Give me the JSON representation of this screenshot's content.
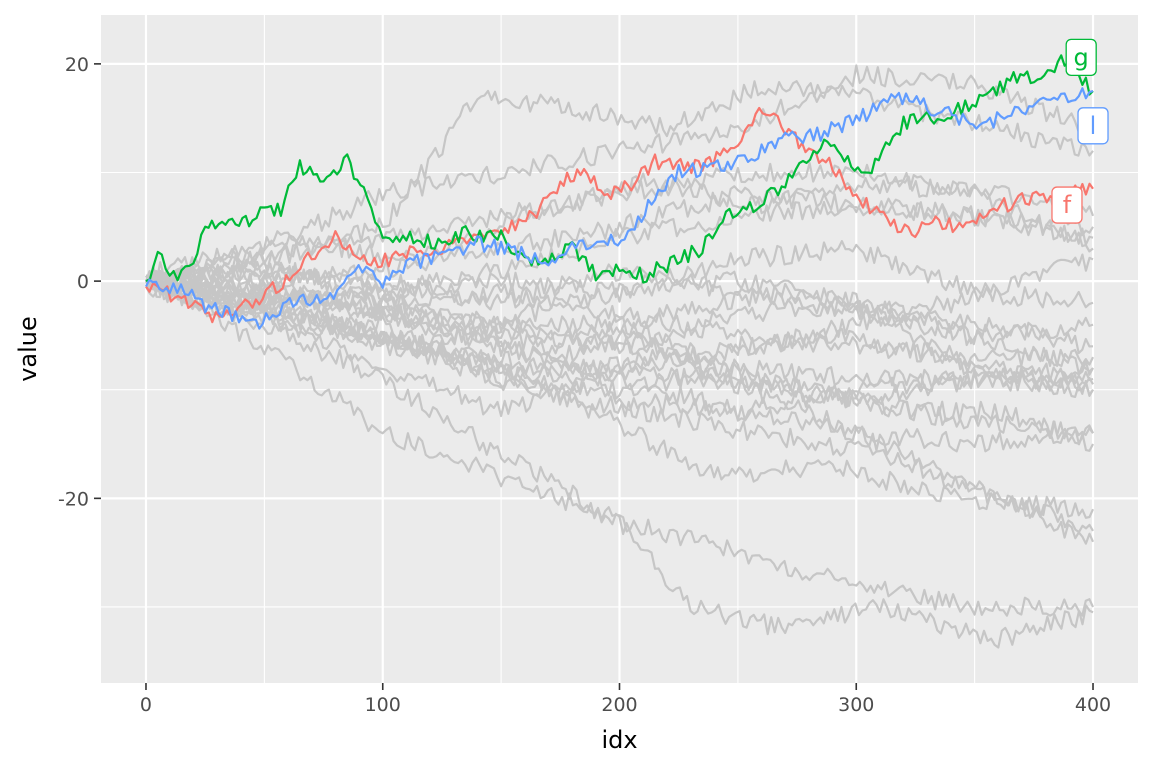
{
  "chart_data": {
    "type": "line",
    "title": "",
    "xlabel": "idx",
    "ylabel": "value",
    "xlim": [
      -19,
      419
    ],
    "ylim": [
      -37,
      24.5
    ],
    "x_ticks": [
      0,
      100,
      200,
      300,
      400
    ],
    "x_tick_labels": [
      "0",
      "100",
      "200",
      "300",
      "400"
    ],
    "y_ticks": [
      20,
      0,
      -20
    ],
    "y_tick_labels": [
      "20",
      "0",
      "-20"
    ],
    "grid": true,
    "legend": "none",
    "n_points": 400,
    "background_color": "#ebebeb",
    "background_series_color": "#c6c6c6",
    "highlighted_series": [
      {
        "name": "f",
        "color": "#f8766d",
        "keypoints": [
          [
            0,
            -0.5
          ],
          [
            15,
            -1.5
          ],
          [
            28,
            -3.5
          ],
          [
            45,
            -2
          ],
          [
            55,
            -0.5
          ],
          [
            62,
            0.5
          ],
          [
            70,
            2.5
          ],
          [
            80,
            4
          ],
          [
            95,
            1.5
          ],
          [
            110,
            2.5
          ],
          [
            125,
            3
          ],
          [
            140,
            4
          ],
          [
            150,
            4.5
          ],
          [
            165,
            6.5
          ],
          [
            175,
            9
          ],
          [
            185,
            10
          ],
          [
            195,
            8
          ],
          [
            205,
            9
          ],
          [
            215,
            11
          ],
          [
            235,
            10.5
          ],
          [
            250,
            13
          ],
          [
            262,
            16
          ],
          [
            270,
            14
          ],
          [
            280,
            12
          ],
          [
            290,
            10.5
          ],
          [
            300,
            8
          ],
          [
            310,
            6
          ],
          [
            322,
            4.5
          ],
          [
            335,
            5.5
          ],
          [
            345,
            5
          ],
          [
            355,
            6.5
          ],
          [
            370,
            7.5
          ],
          [
            385,
            8
          ],
          [
            400,
            8.5
          ]
        ]
      },
      {
        "name": "g",
        "color": "#00ba38",
        "keypoints": [
          [
            0,
            0
          ],
          [
            5,
            2.5
          ],
          [
            10,
            1
          ],
          [
            15,
            0.5
          ],
          [
            20,
            2
          ],
          [
            25,
            5
          ],
          [
            35,
            6
          ],
          [
            45,
            5.5
          ],
          [
            50,
            7
          ],
          [
            57,
            6.5
          ],
          [
            65,
            10.5
          ],
          [
            75,
            9.5
          ],
          [
            85,
            11
          ],
          [
            92,
            8
          ],
          [
            100,
            4.5
          ],
          [
            110,
            4
          ],
          [
            125,
            3.5
          ],
          [
            135,
            4.5
          ],
          [
            150,
            4
          ],
          [
            160,
            2
          ],
          [
            170,
            2
          ],
          [
            180,
            3
          ],
          [
            190,
            0.5
          ],
          [
            200,
            1
          ],
          [
            210,
            0.5
          ],
          [
            220,
            1.5
          ],
          [
            235,
            3
          ],
          [
            245,
            6
          ],
          [
            258,
            7
          ],
          [
            270,
            9
          ],
          [
            285,
            12.5
          ],
          [
            295,
            11.5
          ],
          [
            305,
            10
          ],
          [
            320,
            14.5
          ],
          [
            330,
            15
          ],
          [
            340,
            15.5
          ],
          [
            355,
            17
          ],
          [
            365,
            18.5
          ],
          [
            378,
            19
          ],
          [
            388,
            20.5
          ],
          [
            400,
            17.5
          ]
        ]
      },
      {
        "name": "l",
        "color": "#619cff",
        "keypoints": [
          [
            0,
            -0.5
          ],
          [
            10,
            -0.5
          ],
          [
            18,
            -1
          ],
          [
            25,
            -2.5
          ],
          [
            35,
            -3
          ],
          [
            45,
            -4
          ],
          [
            55,
            -3
          ],
          [
            65,
            -1.5
          ],
          [
            75,
            -2
          ],
          [
            85,
            0
          ],
          [
            93,
            1.5
          ],
          [
            100,
            -0.5
          ],
          [
            110,
            1.5
          ],
          [
            125,
            2.5
          ],
          [
            140,
            3.5
          ],
          [
            150,
            3
          ],
          [
            160,
            2.5
          ],
          [
            170,
            2
          ],
          [
            180,
            3
          ],
          [
            195,
            3.5
          ],
          [
            205,
            4.5
          ],
          [
            215,
            8
          ],
          [
            225,
            10
          ],
          [
            240,
            10.5
          ],
          [
            250,
            11
          ],
          [
            260,
            12
          ],
          [
            270,
            13
          ],
          [
            285,
            13.5
          ],
          [
            300,
            15
          ],
          [
            310,
            16
          ],
          [
            318,
            17
          ],
          [
            330,
            16
          ],
          [
            345,
            15
          ],
          [
            355,
            14.5
          ],
          [
            370,
            16
          ],
          [
            385,
            16.5
          ],
          [
            400,
            17.5
          ]
        ]
      }
    ],
    "background_series": [
      [
        [
          0,
          0
        ],
        [
          50,
          2
        ],
        [
          100,
          5
        ],
        [
          140,
          17
        ],
        [
          180,
          16
        ],
        [
          220,
          14
        ],
        [
          260,
          18
        ],
        [
          300,
          17
        ],
        [
          340,
          15
        ],
        [
          380,
          13
        ],
        [
          400,
          12
        ]
      ],
      [
        [
          0,
          -0.5
        ],
        [
          60,
          -4
        ],
        [
          100,
          -8
        ],
        [
          150,
          -12
        ],
        [
          200,
          -8
        ],
        [
          250,
          -6
        ],
        [
          300,
          -5
        ],
        [
          350,
          -8
        ],
        [
          400,
          -10
        ]
      ],
      [
        [
          0,
          0
        ],
        [
          50,
          -4
        ],
        [
          100,
          -9
        ],
        [
          150,
          -16
        ],
        [
          200,
          -22
        ],
        [
          250,
          -25
        ],
        [
          300,
          -28
        ],
        [
          350,
          -30
        ],
        [
          400,
          -30
        ]
      ],
      [
        [
          0,
          0
        ],
        [
          50,
          -6
        ],
        [
          100,
          -14
        ],
        [
          150,
          -18
        ],
        [
          200,
          -22
        ],
        [
          230,
          -30
        ],
        [
          270,
          -32
        ],
        [
          310,
          -30
        ],
        [
          360,
          -33
        ],
        [
          400,
          -30.5
        ]
      ],
      [
        [
          0,
          0
        ],
        [
          60,
          -2
        ],
        [
          110,
          -6
        ],
        [
          160,
          -10
        ],
        [
          210,
          -12
        ],
        [
          260,
          -14
        ],
        [
          310,
          -16
        ],
        [
          360,
          -20
        ],
        [
          400,
          -23
        ]
      ],
      [
        [
          0,
          0
        ],
        [
          50,
          3
        ],
        [
          100,
          8
        ],
        [
          150,
          10
        ],
        [
          200,
          12
        ],
        [
          250,
          14
        ],
        [
          300,
          19
        ],
        [
          350,
          18
        ],
        [
          400,
          14
        ]
      ],
      [
        [
          0,
          0.5
        ],
        [
          60,
          4
        ],
        [
          110,
          2
        ],
        [
          160,
          6
        ],
        [
          210,
          9
        ],
        [
          260,
          7
        ],
        [
          310,
          9
        ],
        [
          360,
          8
        ],
        [
          400,
          6
        ]
      ],
      [
        [
          0,
          -0.5
        ],
        [
          50,
          -1
        ],
        [
          100,
          -2
        ],
        [
          150,
          -5
        ],
        [
          200,
          -6
        ],
        [
          250,
          -3
        ],
        [
          300,
          -2
        ],
        [
          350,
          -8
        ],
        [
          400,
          -9
        ]
      ],
      [
        [
          0,
          0
        ],
        [
          50,
          -2
        ],
        [
          100,
          -5
        ],
        [
          150,
          -8
        ],
        [
          200,
          -11
        ],
        [
          250,
          -12
        ],
        [
          300,
          -14
        ],
        [
          350,
          -15
        ],
        [
          400,
          -14
        ]
      ],
      [
        [
          0,
          0
        ],
        [
          40,
          -2
        ],
        [
          80,
          -4
        ],
        [
          120,
          -6
        ],
        [
          160,
          -3
        ],
        [
          200,
          -1
        ],
        [
          250,
          2
        ],
        [
          300,
          3
        ],
        [
          350,
          -1
        ],
        [
          400,
          -2
        ]
      ],
      [
        [
          0,
          0
        ],
        [
          50,
          1
        ],
        [
          100,
          -1
        ],
        [
          150,
          1
        ],
        [
          200,
          4
        ],
        [
          250,
          6
        ],
        [
          300,
          7
        ],
        [
          350,
          6
        ],
        [
          400,
          5
        ]
      ],
      [
        [
          0,
          0
        ],
        [
          50,
          -3
        ],
        [
          100,
          -4
        ],
        [
          150,
          -9
        ],
        [
          200,
          -5
        ],
        [
          250,
          -9
        ],
        [
          300,
          -11
        ],
        [
          350,
          -9
        ],
        [
          400,
          -8
        ]
      ],
      [
        [
          0,
          0
        ],
        [
          60,
          1
        ],
        [
          120,
          -3
        ],
        [
          180,
          -5
        ],
        [
          240,
          -7
        ],
        [
          300,
          -4
        ],
        [
          340,
          -2
        ],
        [
          400,
          2
        ]
      ],
      [
        [
          0,
          0
        ],
        [
          50,
          -1
        ],
        [
          100,
          -3
        ],
        [
          150,
          -4
        ],
        [
          200,
          -4
        ],
        [
          260,
          -9
        ],
        [
          320,
          -12
        ],
        [
          360,
          -12
        ],
        [
          400,
          -15
        ]
      ],
      [
        [
          0,
          0.5
        ],
        [
          50,
          2
        ],
        [
          100,
          4
        ],
        [
          150,
          6
        ],
        [
          200,
          8
        ],
        [
          250,
          10
        ],
        [
          300,
          10
        ],
        [
          350,
          8
        ],
        [
          400,
          3
        ]
      ],
      [
        [
          0,
          -0.5
        ],
        [
          40,
          -3
        ],
        [
          90,
          -5
        ],
        [
          140,
          -7
        ],
        [
          190,
          -12
        ],
        [
          240,
          -18
        ],
        [
          290,
          -17
        ],
        [
          340,
          -20
        ],
        [
          400,
          -21
        ]
      ],
      [
        [
          0,
          0
        ],
        [
          50,
          -1
        ],
        [
          100,
          -2
        ],
        [
          150,
          -1
        ],
        [
          200,
          -3
        ],
        [
          250,
          -5
        ],
        [
          300,
          -6
        ],
        [
          350,
          -7
        ],
        [
          400,
          -7
        ]
      ],
      [
        [
          0,
          0
        ],
        [
          50,
          -2
        ],
        [
          100,
          -6
        ],
        [
          150,
          -7
        ],
        [
          200,
          -10
        ],
        [
          250,
          -8
        ],
        [
          300,
          -9
        ],
        [
          350,
          -9
        ],
        [
          400,
          -9.5
        ]
      ],
      [
        [
          0,
          0
        ],
        [
          40,
          1
        ],
        [
          80,
          -2
        ],
        [
          120,
          -4
        ],
        [
          170,
          -6
        ],
        [
          220,
          -3
        ],
        [
          270,
          -1
        ],
        [
          320,
          -3
        ],
        [
          360,
          -6
        ],
        [
          400,
          -8
        ]
      ],
      [
        [
          0,
          0
        ],
        [
          50,
          -1
        ],
        [
          100,
          -3
        ],
        [
          150,
          -6
        ],
        [
          200,
          -9
        ],
        [
          250,
          -12
        ],
        [
          300,
          -10
        ],
        [
          350,
          -9
        ],
        [
          400,
          -10
        ]
      ],
      [
        [
          0,
          0
        ],
        [
          50,
          0
        ],
        [
          100,
          1
        ],
        [
          150,
          3
        ],
        [
          200,
          5
        ],
        [
          250,
          8
        ],
        [
          300,
          7
        ],
        [
          350,
          6
        ],
        [
          400,
          4
        ]
      ],
      [
        [
          0,
          0
        ],
        [
          50,
          -2
        ],
        [
          100,
          -1
        ],
        [
          150,
          0
        ],
        [
          200,
          -1
        ],
        [
          250,
          0
        ],
        [
          300,
          -2
        ],
        [
          350,
          -4
        ],
        [
          400,
          -6
        ]
      ],
      [
        [
          0,
          0
        ],
        [
          60,
          -1
        ],
        [
          120,
          -4
        ],
        [
          180,
          -8
        ],
        [
          240,
          -9
        ],
        [
          300,
          -11
        ],
        [
          350,
          -13
        ],
        [
          400,
          -14
        ]
      ],
      [
        [
          0,
          -0.5
        ],
        [
          50,
          -3
        ],
        [
          100,
          -5
        ],
        [
          160,
          -9
        ],
        [
          220,
          -7
        ],
        [
          280,
          -12
        ],
        [
          340,
          -18
        ],
        [
          400,
          -24
        ]
      ],
      [
        [
          0,
          0
        ],
        [
          50,
          1
        ],
        [
          100,
          0
        ],
        [
          150,
          -2
        ],
        [
          200,
          1
        ],
        [
          250,
          -1
        ],
        [
          300,
          -3
        ],
        [
          350,
          -5
        ],
        [
          400,
          -4
        ]
      ]
    ]
  }
}
